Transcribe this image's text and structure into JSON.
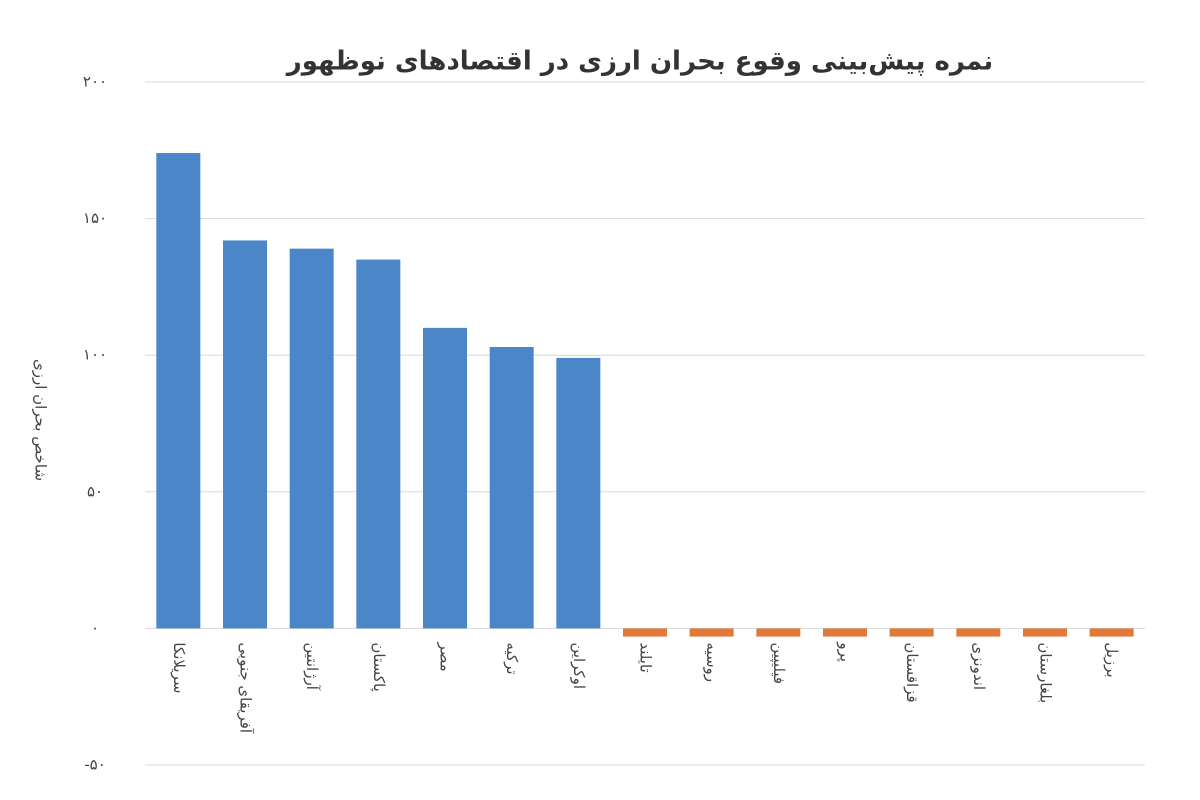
{
  "chart_data": {
    "type": "bar",
    "title": "نمره پیش‌بینی وقوع بحران ارزی در اقتصادهای نوظهور",
    "y_label": "شاخص بحران ارزی",
    "categories": [
      "سریلانکا",
      "آفریقای جنوبی",
      "آرژانتین",
      "پاکستان",
      "مصر",
      "ترکیه",
      "اوکراین",
      "تایلند",
      "روسیه",
      "فیلیپین",
      "پرو",
      "قزاقستان",
      "اندونزی",
      "بلغارستان",
      "برزیل"
    ],
    "values": [
      174,
      142,
      139,
      135,
      110,
      103,
      99,
      -3,
      -3,
      -3,
      -3,
      -3,
      -3,
      -3,
      -3
    ],
    "colors": [
      "#4a86c8",
      "#4a86c8",
      "#4a86c8",
      "#4a86c8",
      "#4a86c8",
      "#4a86c8",
      "#4a86c8",
      "#e07a3a",
      "#e07a3a",
      "#e07a3a",
      "#e07a3a",
      "#e07a3a",
      "#e07a3a",
      "#e07a3a",
      "#e07a3a"
    ],
    "ylim": [
      -50,
      200
    ],
    "yticks": [
      {
        "value": -50,
        "label": "-۵۰"
      },
      {
        "value": 0,
        "label": "۰"
      },
      {
        "value": 50,
        "label": "۵۰"
      },
      {
        "value": 100,
        "label": "۱۰۰"
      },
      {
        "value": 150,
        "label": "۱۵۰"
      },
      {
        "value": 200,
        "label": "۲۰۰"
      }
    ],
    "grid": true
  }
}
